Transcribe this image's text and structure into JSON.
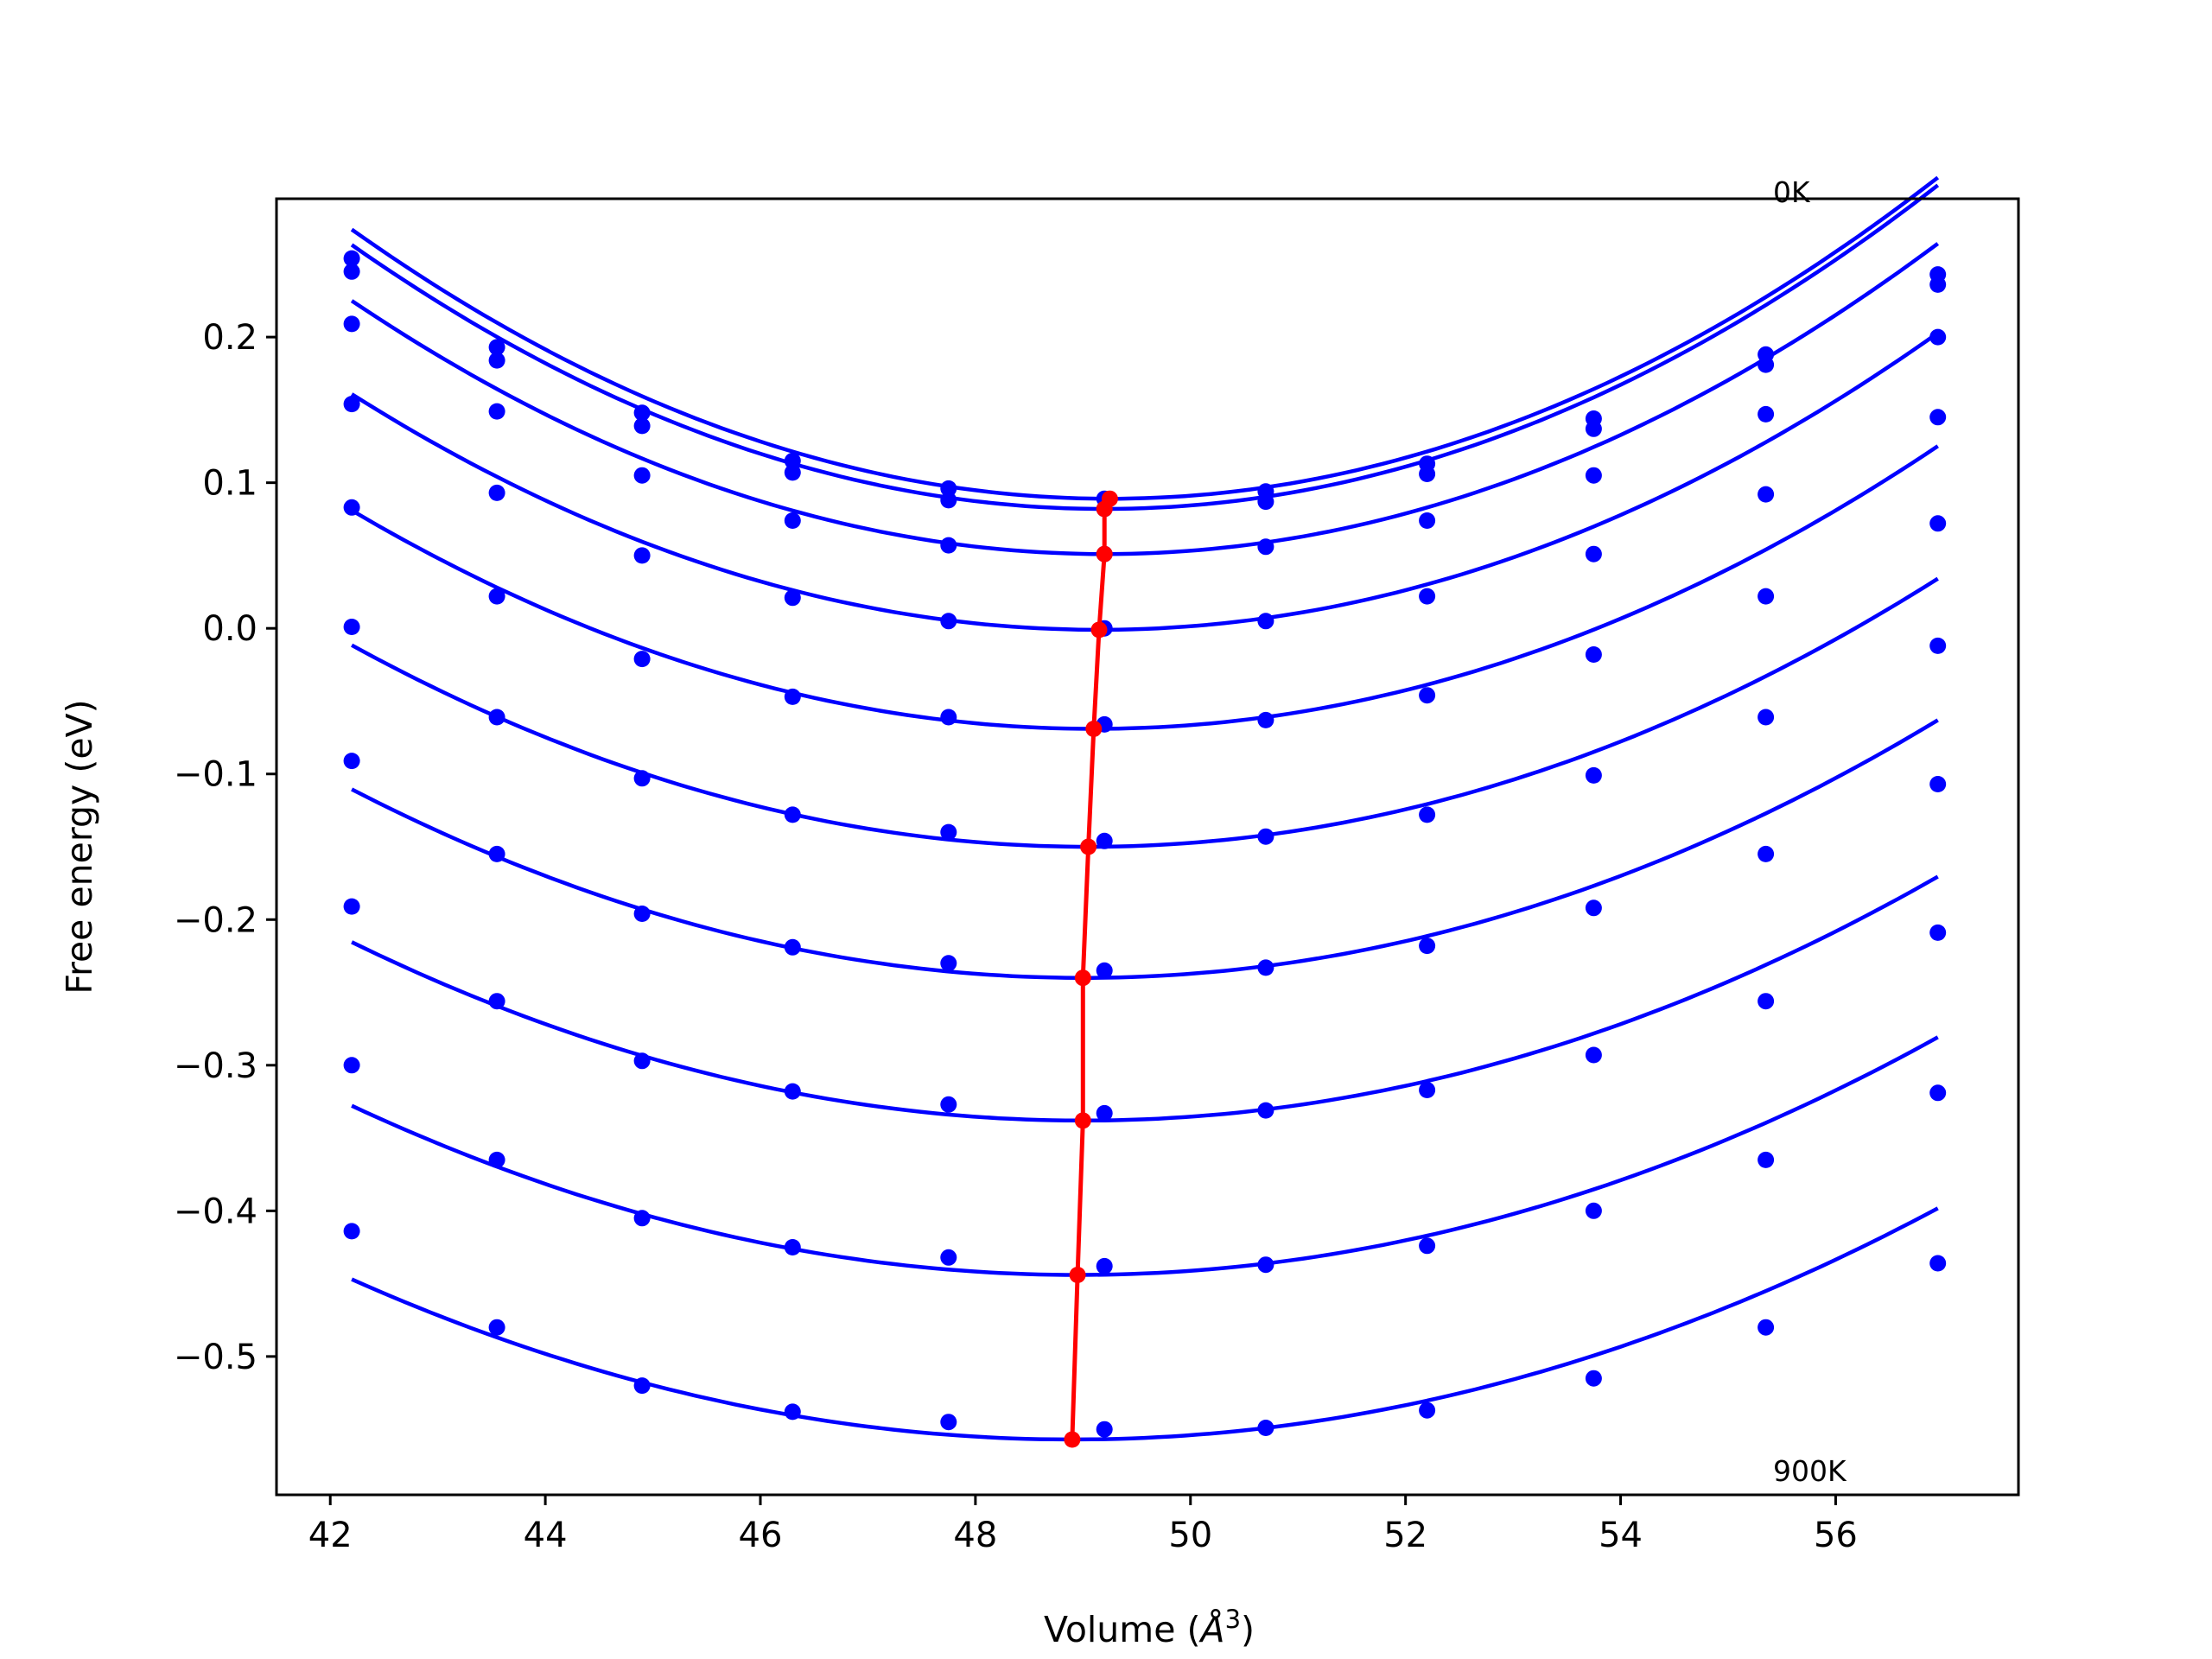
{
  "chart_data": {
    "type": "line",
    "xlabel": "Volume (Å3)",
    "xlabel_base": "Volume (",
    "xlabel_unit": "Å",
    "xlabel_exp": "3",
    "xlabel_close": ")",
    "ylabel": "Free energy (eV)",
    "xlim": [
      41.5,
      57.7
    ],
    "ylim": [
      -0.595,
      0.295
    ],
    "xticks": [
      42,
      44,
      46,
      48,
      50,
      52,
      54,
      56
    ],
    "xtick_labels": [
      "42",
      "44",
      "46",
      "48",
      "50",
      "52",
      "54",
      "56"
    ],
    "yticks": [
      -0.5,
      -0.4,
      -0.3,
      -0.2,
      -0.1,
      0.0,
      0.1,
      0.2
    ],
    "ytick_labels": [
      "−0.5",
      "−0.4",
      "−0.3",
      "−0.2",
      "−0.1",
      "0.0",
      "0.1",
      "0.2"
    ],
    "annotations": [
      {
        "text": "0K",
        "x": 55.35,
        "y": 0.3
      },
      {
        "text": "900K",
        "x": 55.35,
        "y": -0.578
      }
    ],
    "x": [
      42.2,
      43.55,
      44.9,
      46.3,
      47.75,
      49.2,
      50.7,
      52.2,
      53.75,
      55.35,
      56.95
    ],
    "series": [
      {
        "points": [
          0.254,
          0.193,
          0.148,
          0.115,
          0.096,
          0.089,
          0.094,
          0.113,
          0.144,
          0.188,
          0.243
        ],
        "fit": [
          0.00372,
          49.25,
          0.089
        ]
      },
      {
        "points": [
          0.245,
          0.184,
          0.139,
          0.107,
          0.088,
          0.082,
          0.087,
          0.106,
          0.137,
          0.181,
          0.236
        ],
        "fit": [
          0.0037,
          49.2,
          0.082
        ]
      },
      {
        "points": [
          0.209,
          0.149,
          0.105,
          0.074,
          0.057,
          0.051,
          0.056,
          0.074,
          0.105,
          0.147,
          0.2
        ],
        "fit": [
          0.00355,
          49.2,
          0.051
        ]
      },
      {
        "points": [
          0.154,
          0.093,
          0.05,
          0.021,
          0.005,
          0.0,
          0.005,
          0.022,
          0.051,
          0.092,
          0.145
        ],
        "fit": [
          0.00335,
          49.15,
          -0.001
        ]
      },
      {
        "points": [
          0.083,
          0.022,
          -0.021,
          -0.047,
          -0.061,
          -0.066,
          -0.063,
          -0.046,
          -0.018,
          0.022,
          0.072
        ],
        "fit": [
          0.00315,
          49.1,
          -0.069
        ]
      },
      {
        "points": [
          0.001,
          -0.061,
          -0.103,
          -0.128,
          -0.14,
          -0.146,
          -0.143,
          -0.128,
          -0.101,
          -0.061,
          -0.012
        ],
        "fit": [
          0.00295,
          49.05,
          -0.15
        ]
      },
      {
        "points": [
          -0.091,
          -0.155,
          -0.196,
          -0.219,
          -0.23,
          -0.235,
          -0.233,
          -0.218,
          -0.192,
          -0.155,
          -0.107
        ],
        "fit": [
          0.0028,
          49.0,
          -0.24
        ]
      },
      {
        "points": [
          -0.191,
          -0.256,
          -0.297,
          -0.318,
          -0.327,
          -0.333,
          -0.331,
          -0.317,
          -0.293,
          -0.256,
          -0.209
        ],
        "fit": [
          0.00265,
          49.0,
          -0.338
        ]
      },
      {
        "points": [
          -0.3,
          -0.365,
          -0.405,
          -0.425,
          -0.432,
          -0.438,
          -0.437,
          -0.424,
          -0.4,
          -0.365,
          -0.319
        ],
        "fit": [
          0.00255,
          48.95,
          -0.444
        ]
      },
      {
        "points": [
          -0.414,
          -0.48,
          -0.52,
          -0.538,
          -0.545,
          -0.55,
          -0.549,
          -0.537,
          -0.515,
          -0.48,
          -0.436
        ],
        "fit": [
          0.00245,
          48.9,
          -0.557
        ]
      }
    ],
    "minima_line": {
      "x": [
        49.25,
        49.2,
        49.2,
        49.15,
        49.1,
        49.05,
        49.0,
        49.0,
        48.95,
        48.9
      ],
      "y": [
        0.089,
        0.082,
        0.051,
        -0.001,
        -0.069,
        -0.15,
        -0.24,
        -0.338,
        -0.444,
        -0.557
      ]
    },
    "colors": {
      "series": "#0000ff",
      "minima": "#ff0000",
      "axes": "#000000"
    },
    "grid": false
  }
}
